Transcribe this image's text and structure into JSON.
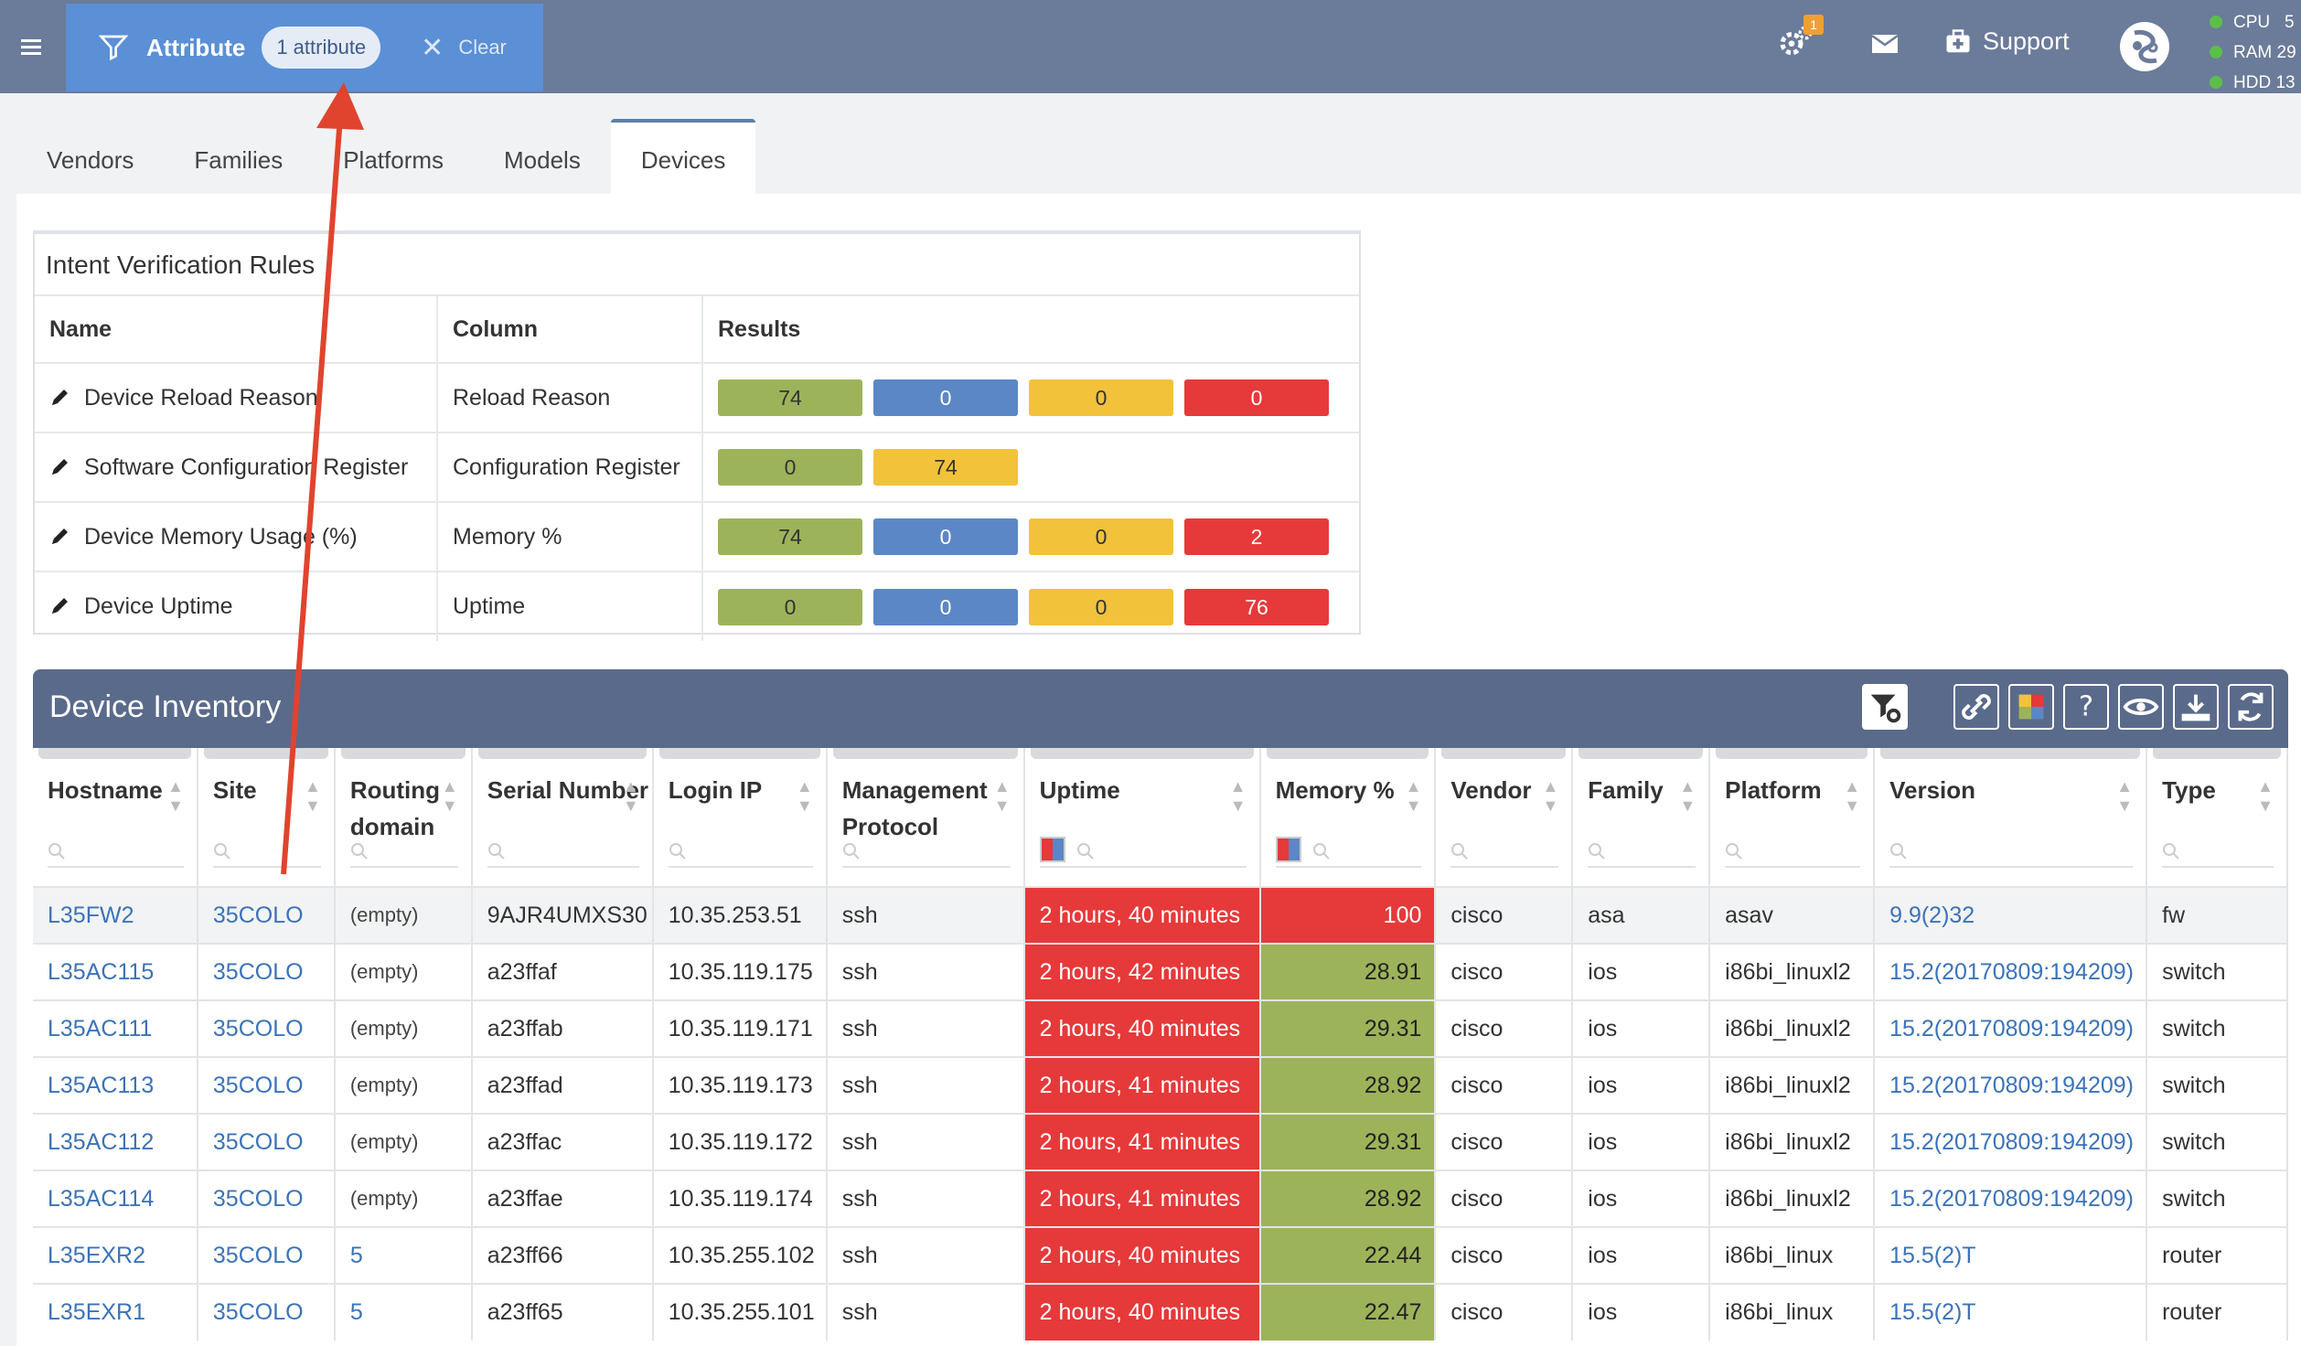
{
  "header": {
    "filter_label": "Attribute",
    "filter_pill": "1 attribute",
    "clear_label": "Clear",
    "gear_badge": "1",
    "support_label": "Support",
    "stats": [
      {
        "label": "CPU",
        "value": "5"
      },
      {
        "label": "RAM",
        "value": "29"
      },
      {
        "label": "HDD",
        "value": "13"
      }
    ]
  },
  "tabs": [
    "Vendors",
    "Families",
    "Platforms",
    "Models",
    "Devices"
  ],
  "active_tab": "Devices",
  "intent": {
    "title": "Intent Verification Rules",
    "columns": [
      "Name",
      "Column",
      "Results"
    ],
    "rows": [
      {
        "name": "Device Reload Reason",
        "column": "Reload Reason",
        "results": [
          {
            "value": "74",
            "color": "#9db35a"
          },
          {
            "value": "0",
            "color": "#5b87c6"
          },
          {
            "value": "0",
            "color": "#f2c23b"
          },
          {
            "value": "0",
            "color": "#e6393a"
          }
        ]
      },
      {
        "name": "Software Configuration Register",
        "column": "Configuration Register",
        "results": [
          {
            "value": "0",
            "color": "#9db35a"
          },
          {
            "value": "74",
            "color": "#f2c23b"
          }
        ]
      },
      {
        "name": "Device Memory Usage (%)",
        "column": "Memory %",
        "results": [
          {
            "value": "74",
            "color": "#9db35a"
          },
          {
            "value": "0",
            "color": "#5b87c6"
          },
          {
            "value": "0",
            "color": "#f2c23b"
          },
          {
            "value": "2",
            "color": "#e6393a"
          }
        ]
      },
      {
        "name": "Device Uptime",
        "column": "Uptime",
        "results": [
          {
            "value": "0",
            "color": "#9db35a"
          },
          {
            "value": "0",
            "color": "#5b87c6"
          },
          {
            "value": "0",
            "color": "#f2c23b"
          },
          {
            "value": "76",
            "color": "#e6393a"
          }
        ]
      }
    ]
  },
  "inventory": {
    "title": "Device Inventory",
    "columns": [
      "Hostname",
      "Site",
      "Routing domain",
      "Serial Number",
      "Login IP",
      "Management Protocol",
      "Uptime",
      "Memory %",
      "Vendor",
      "Family",
      "Platform",
      "Version",
      "Type"
    ],
    "rows": [
      {
        "hostname": "L35FW2",
        "site": "35COLO",
        "routing": "(empty)",
        "serial": "9AJR4UMXS30",
        "ip": "10.35.253.51",
        "proto": "ssh",
        "uptime": "2 hours, 40 minutes",
        "memory": "100",
        "vendor": "cisco",
        "family": "asa",
        "platform": "asav",
        "version": "9.9(2)32",
        "type": "fw"
      },
      {
        "hostname": "L35AC115",
        "site": "35COLO",
        "routing": "(empty)",
        "serial": "a23ffaf",
        "ip": "10.35.119.175",
        "proto": "ssh",
        "uptime": "2 hours, 42 minutes",
        "memory": "28.91",
        "vendor": "cisco",
        "family": "ios",
        "platform": "i86bi_linuxl2",
        "version": "15.2(20170809:194209)",
        "type": "switch"
      },
      {
        "hostname": "L35AC111",
        "site": "35COLO",
        "routing": "(empty)",
        "serial": "a23ffab",
        "ip": "10.35.119.171",
        "proto": "ssh",
        "uptime": "2 hours, 40 minutes",
        "memory": "29.31",
        "vendor": "cisco",
        "family": "ios",
        "platform": "i86bi_linuxl2",
        "version": "15.2(20170809:194209)",
        "type": "switch"
      },
      {
        "hostname": "L35AC113",
        "site": "35COLO",
        "routing": "(empty)",
        "serial": "a23ffad",
        "ip": "10.35.119.173",
        "proto": "ssh",
        "uptime": "2 hours, 41 minutes",
        "memory": "28.92",
        "vendor": "cisco",
        "family": "ios",
        "platform": "i86bi_linuxl2",
        "version": "15.2(20170809:194209)",
        "type": "switch"
      },
      {
        "hostname": "L35AC112",
        "site": "35COLO",
        "routing": "(empty)",
        "serial": "a23ffac",
        "ip": "10.35.119.172",
        "proto": "ssh",
        "uptime": "2 hours, 41 minutes",
        "memory": "29.31",
        "vendor": "cisco",
        "family": "ios",
        "platform": "i86bi_linuxl2",
        "version": "15.2(20170809:194209)",
        "type": "switch"
      },
      {
        "hostname": "L35AC114",
        "site": "35COLO",
        "routing": "(empty)",
        "serial": "a23ffae",
        "ip": "10.35.119.174",
        "proto": "ssh",
        "uptime": "2 hours, 41 minutes",
        "memory": "28.92",
        "vendor": "cisco",
        "family": "ios",
        "platform": "i86bi_linuxl2",
        "version": "15.2(20170809:194209)",
        "type": "switch"
      },
      {
        "hostname": "L35EXR2",
        "site": "35COLO",
        "routing": "5",
        "serial": "a23ff66",
        "ip": "10.35.255.102",
        "proto": "ssh",
        "uptime": "2 hours, 40 minutes",
        "memory": "22.44",
        "vendor": "cisco",
        "family": "ios",
        "platform": "i86bi_linux",
        "version": "15.5(2)T",
        "type": "router"
      },
      {
        "hostname": "L35EXR1",
        "site": "35COLO",
        "routing": "5",
        "serial": "a23ff65",
        "ip": "10.35.255.101",
        "proto": "ssh",
        "uptime": "2 hours, 40 minutes",
        "memory": "22.47",
        "vendor": "cisco",
        "family": "ios",
        "platform": "i86bi_linux",
        "version": "15.5(2)T",
        "type": "router"
      }
    ]
  },
  "colors": {
    "header_bg": "#6b7b9a",
    "filter_bg": "#5b8fd6",
    "inventory_head": "#5a6a8a",
    "arrow": "#e0442e",
    "link": "#3b73b8"
  }
}
